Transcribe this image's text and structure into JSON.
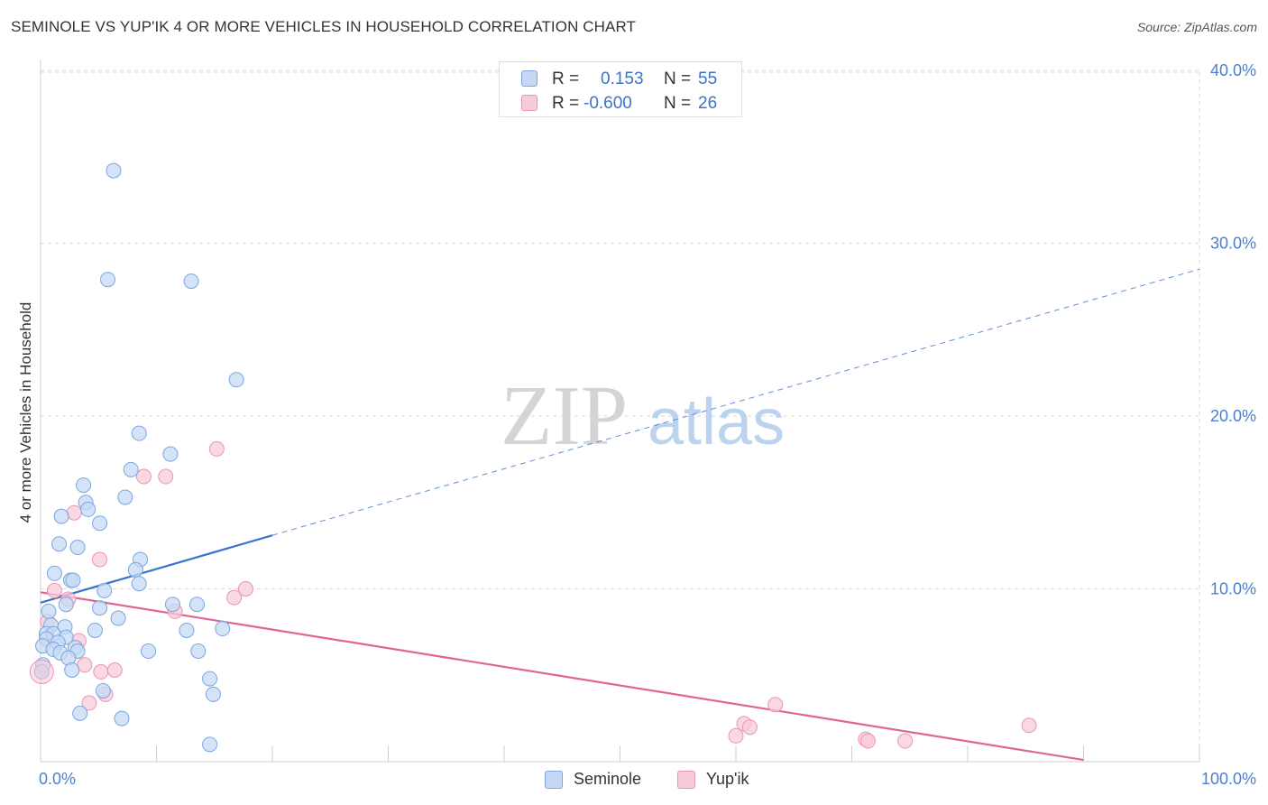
{
  "header": {
    "title": "SEMINOLE VS YUP'IK 4 OR MORE VEHICLES IN HOUSEHOLD CORRELATION CHART",
    "source": "Source: ZipAtlas.com"
  },
  "stats_legend": {
    "r_label": "R =",
    "n_label": "N =",
    "rows": [
      {
        "name": "Seminole",
        "r": "0.153",
        "n": "55"
      },
      {
        "name": "Yup'ik",
        "r": "-0.600",
        "n": "26"
      }
    ]
  },
  "watermark": {
    "zip": "ZIP",
    "atlas": "atlas"
  },
  "colors": {
    "seminole_fill": "#c5d9f4",
    "seminole_stroke": "#7ba6e0",
    "seminole_line": "#3874cf",
    "yupik_fill": "#f8cbd9",
    "yupik_stroke": "#eb94b2",
    "yupik_line": "#e06595",
    "axis_label": "#4a7fd0",
    "grid": "#d9d9d9"
  },
  "chart_data": {
    "type": "scatter",
    "title": "SEMINOLE VS YUP'IK 4 OR MORE VEHICLES IN HOUSEHOLD CORRELATION CHART",
    "xlabel": "",
    "ylabel": "4 or more Vehicles in Household",
    "xlim": [
      0,
      100
    ],
    "ylim": [
      0,
      40
    ],
    "x_tick_labels": [
      "0.0%",
      "100.0%"
    ],
    "y_ticks": [
      10,
      20,
      30,
      40
    ],
    "y_tick_labels": [
      "10.0%",
      "20.0%",
      "30.0%",
      "40.0%"
    ],
    "grid": true,
    "legend_position": "bottom-center",
    "series": [
      {
        "name": "Seminole",
        "r": 0.153,
        "n": 55,
        "trend": {
          "x": [
            0,
            20
          ],
          "y": [
            9.2,
            13.1
          ],
          "extended_to": [
            100,
            28.5
          ]
        },
        "points": [
          [
            6.3,
            34.2
          ],
          [
            5.8,
            27.9
          ],
          [
            13,
            27.8
          ],
          [
            16.9,
            22.1
          ],
          [
            8.5,
            19.0
          ],
          [
            11.2,
            17.8
          ],
          [
            7.8,
            16.9
          ],
          [
            3.7,
            16.0
          ],
          [
            7.3,
            15.3
          ],
          [
            3.9,
            15.0
          ],
          [
            4.1,
            14.6
          ],
          [
            1.8,
            14.2
          ],
          [
            5.1,
            13.8
          ],
          [
            1.6,
            12.6
          ],
          [
            3.2,
            12.4
          ],
          [
            8.6,
            11.7
          ],
          [
            8.2,
            11.1
          ],
          [
            1.2,
            10.9
          ],
          [
            2.6,
            10.5
          ],
          [
            2.8,
            10.5
          ],
          [
            8.5,
            10.3
          ],
          [
            5.5,
            9.9
          ],
          [
            2.2,
            9.1
          ],
          [
            11.4,
            9.1
          ],
          [
            13.5,
            9.1
          ],
          [
            5.1,
            8.9
          ],
          [
            0.7,
            8.7
          ],
          [
            6.7,
            8.3
          ],
          [
            0.9,
            7.9
          ],
          [
            2.1,
            7.8
          ],
          [
            12.6,
            7.6
          ],
          [
            15.7,
            7.7
          ],
          [
            4.7,
            7.6
          ],
          [
            0.5,
            7.4
          ],
          [
            1.1,
            7.4
          ],
          [
            2.2,
            7.2
          ],
          [
            0.5,
            7.1
          ],
          [
            1.5,
            6.9
          ],
          [
            0.2,
            6.7
          ],
          [
            1.1,
            6.5
          ],
          [
            3.0,
            6.6
          ],
          [
            3.2,
            6.4
          ],
          [
            1.7,
            6.3
          ],
          [
            9.3,
            6.4
          ],
          [
            13.6,
            6.4
          ],
          [
            2.4,
            6.0
          ],
          [
            0.2,
            5.6
          ],
          [
            2.7,
            5.3
          ],
          [
            14.6,
            4.8
          ],
          [
            5.4,
            4.1
          ],
          [
            14.9,
            3.9
          ],
          [
            3.4,
            2.8
          ],
          [
            7.0,
            2.5
          ],
          [
            14.6,
            1.0
          ],
          [
            0.1,
            5.2
          ]
        ]
      },
      {
        "name": "Yup'ik",
        "r": -0.6,
        "n": 26,
        "trend": {
          "x": [
            0,
            90
          ],
          "y": [
            9.8,
            0.1
          ]
        },
        "points": [
          [
            15.2,
            18.1
          ],
          [
            8.9,
            16.5
          ],
          [
            10.8,
            16.5
          ],
          [
            2.9,
            14.4
          ],
          [
            5.1,
            11.7
          ],
          [
            17.7,
            10.0
          ],
          [
            16.7,
            9.5
          ],
          [
            1.2,
            9.9
          ],
          [
            2.4,
            9.4
          ],
          [
            11.6,
            8.7
          ],
          [
            0.6,
            8.1
          ],
          [
            3.3,
            7.0
          ],
          [
            3.8,
            5.6
          ],
          [
            5.2,
            5.2
          ],
          [
            6.4,
            5.3
          ],
          [
            5.6,
            3.9
          ],
          [
            4.2,
            3.4
          ],
          [
            0.1,
            5.2
          ],
          [
            63.4,
            3.3
          ],
          [
            60.7,
            2.2
          ],
          [
            61.2,
            2.0
          ],
          [
            60.0,
            1.5
          ],
          [
            71.2,
            1.3
          ],
          [
            71.4,
            1.2
          ],
          [
            85.3,
            2.1
          ],
          [
            74.6,
            1.2
          ]
        ]
      }
    ]
  }
}
